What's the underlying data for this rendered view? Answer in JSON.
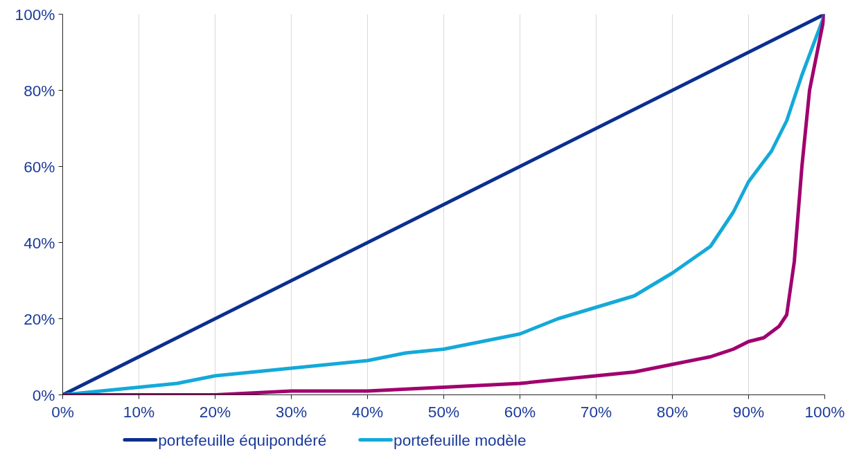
{
  "chart_data": {
    "type": "line",
    "xlim": [
      0,
      100
    ],
    "ylim": [
      0,
      100
    ],
    "xticks": [
      {
        "value": 0,
        "label": "0%"
      },
      {
        "value": 10,
        "label": "10%"
      },
      {
        "value": 20,
        "label": "20%"
      },
      {
        "value": 30,
        "label": "30%"
      },
      {
        "value": 40,
        "label": "40%"
      },
      {
        "value": 50,
        "label": "50%"
      },
      {
        "value": 60,
        "label": "60%"
      },
      {
        "value": 70,
        "label": "70%"
      },
      {
        "value": 80,
        "label": "80%"
      },
      {
        "value": 90,
        "label": "90%"
      },
      {
        "value": 100,
        "label": "100%"
      }
    ],
    "yticks": [
      {
        "value": 0,
        "label": "0%"
      },
      {
        "value": 20,
        "label": "20%"
      },
      {
        "value": 40,
        "label": "40%"
      },
      {
        "value": 60,
        "label": "60%"
      },
      {
        "value": 80,
        "label": "80%"
      },
      {
        "value": 100,
        "label": "100%"
      }
    ],
    "grid": "x",
    "legend": "bottom",
    "marker": "none",
    "line_style": "solid",
    "series": [
      {
        "name": "portefeuille équipondéré",
        "color": "#0b2f8f",
        "x": [
          0,
          100
        ],
        "values": [
          0,
          100
        ]
      },
      {
        "name": "portefeuille modèle",
        "color": "#14a9d9",
        "x": [
          0,
          5,
          10,
          15,
          20,
          25,
          30,
          35,
          40,
          45,
          50,
          55,
          60,
          65,
          70,
          75,
          80,
          85,
          88,
          90,
          93,
          95,
          97,
          100
        ],
        "values": [
          0,
          1,
          2,
          3,
          5,
          6,
          7,
          8,
          9,
          11,
          12,
          14,
          16,
          20,
          23,
          26,
          32,
          39,
          48,
          56,
          64,
          72,
          84,
          100
        ]
      },
      {
        "color": "#a0006e",
        "x": [
          0,
          10,
          20,
          30,
          40,
          50,
          60,
          70,
          75,
          80,
          85,
          88,
          90,
          92,
          94,
          95,
          96,
          97,
          98,
          100
        ],
        "values": [
          0,
          0,
          0,
          1,
          1,
          2,
          3,
          5,
          6,
          8,
          10,
          12,
          14,
          15,
          18,
          21,
          35,
          60,
          80,
          100
        ]
      }
    ]
  }
}
